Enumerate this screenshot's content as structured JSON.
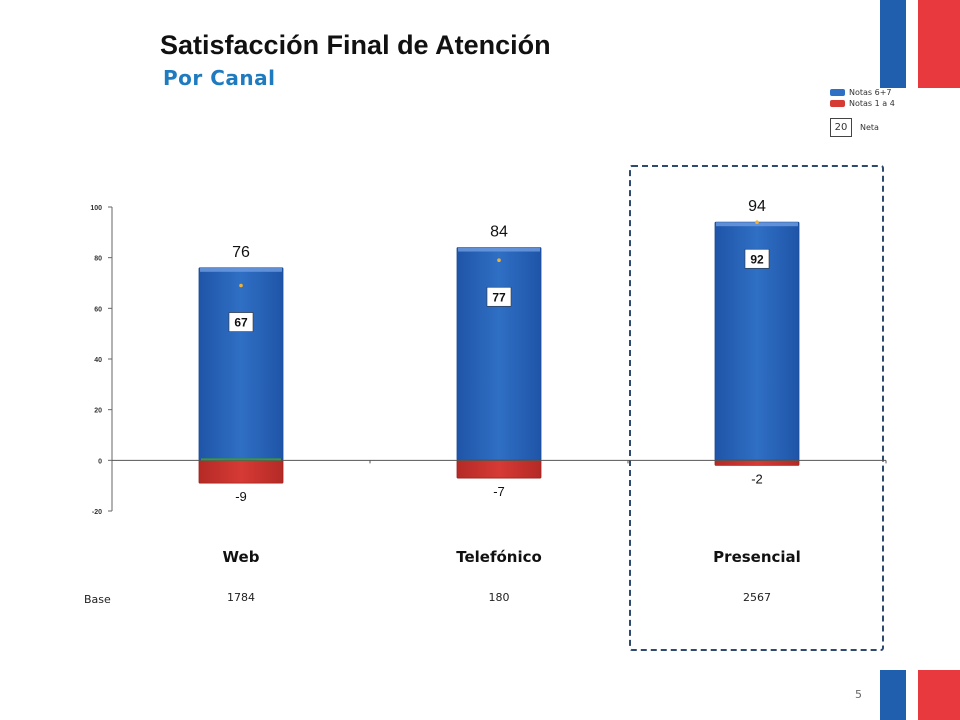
{
  "slide": {
    "title": "Satisfacción Final de Atención",
    "subtitle": "Por Canal",
    "page_number": "5",
    "base_label": "Base",
    "colors": {
      "positive": "#2f6fc4",
      "negative": "#d63a35",
      "neta_marker": "#f2b134",
      "brand_blue": "#1f5fae",
      "brand_red": "#e8393f"
    }
  },
  "legend": {
    "positive_label": "Notas 6+7",
    "negative_label": "Notas 1 a 4",
    "neta_example": "20",
    "neta_label": "Neta"
  },
  "chart_data": {
    "type": "bar",
    "categories": [
      "Web",
      "Telefónico",
      "Presencial"
    ],
    "series": [
      {
        "name": "Notas 6+7",
        "values": [
          76,
          84,
          94
        ]
      },
      {
        "name": "Notas 1 a 4",
        "values": [
          -9,
          -7,
          -2
        ]
      },
      {
        "name": "Neta",
        "values": [
          67,
          77,
          92
        ]
      }
    ],
    "base": [
      "1784",
      "180",
      "2567"
    ],
    "ylim": [
      -20,
      100
    ],
    "yticks": [
      -20,
      0,
      20,
      40,
      60,
      80,
      100
    ],
    "highlighted_category": "Presencial"
  }
}
